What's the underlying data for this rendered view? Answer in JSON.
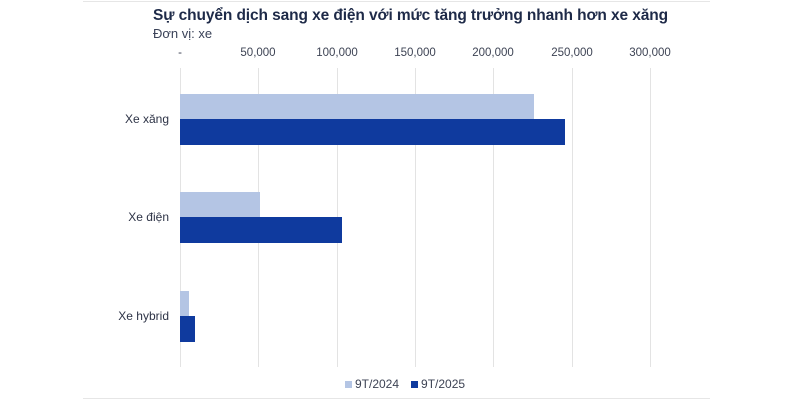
{
  "chart_data": {
    "type": "bar",
    "orientation": "horizontal",
    "title": "Sự chuyển dịch sang xe điện với mức tăng trưởng nhanh hơn xe xăng",
    "subtitle": "Đơn vị: xe",
    "xlabel": "",
    "ylabel": "",
    "xlim": [
      0,
      300000
    ],
    "x_ticks": [
      "-",
      "50,000",
      "100,000",
      "150,000",
      "200,000",
      "250,000",
      "300,000"
    ],
    "x_tick_values": [
      0,
      50000,
      100000,
      150000,
      200000,
      250000,
      300000
    ],
    "axis_position": "top",
    "grid": true,
    "categories": [
      "Xe xăng",
      "Xe điện",
      "Xe hybrid"
    ],
    "series": [
      {
        "name": "9T/2024",
        "color": "#b4c5e4",
        "values": [
          226000,
          51000,
          5500
        ]
      },
      {
        "name": "9T/2025",
        "color": "#0f3a9e",
        "values": [
          245500,
          103500,
          9700
        ]
      }
    ],
    "legend_position": "bottom"
  },
  "labels": {
    "title": "Sự chuyển dịch sang xe điện với mức tăng trưởng nhanh hơn xe xăng",
    "subtitle": "Đơn vị: xe",
    "ticks": [
      "-",
      "50,000",
      "100,000",
      "150,000",
      "200,000",
      "250,000",
      "300,000"
    ],
    "categories": [
      "Xe xăng",
      "Xe điện",
      "Xe hybrid"
    ],
    "legend": [
      "9T/2024",
      "9T/2025"
    ]
  }
}
